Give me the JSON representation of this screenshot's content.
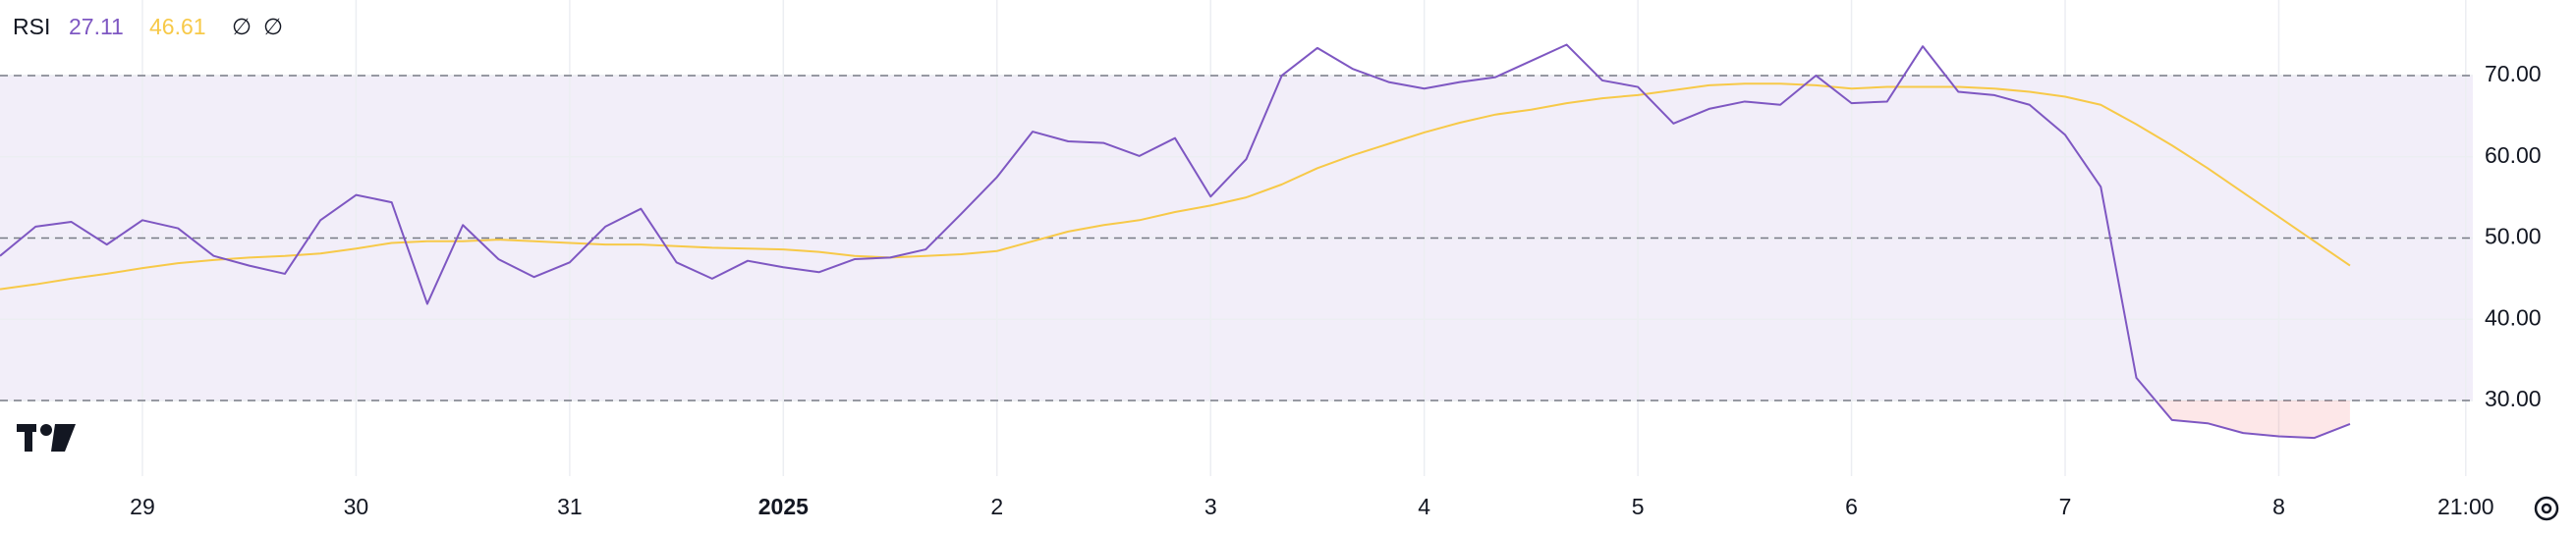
{
  "chart_data": {
    "type": "line",
    "title": "RSI",
    "legend_symbols": [
      "∅",
      "∅"
    ],
    "x": [
      0,
      1,
      2,
      3,
      4,
      5,
      6,
      7,
      8,
      9,
      10,
      11,
      12,
      13,
      14,
      15,
      16,
      17,
      18,
      19,
      20,
      21,
      22,
      23,
      24,
      25,
      26,
      27,
      28,
      29,
      30,
      31,
      32,
      33,
      34,
      35,
      36,
      37,
      38,
      39,
      40,
      41,
      42,
      43,
      44,
      45,
      46,
      47,
      48,
      49,
      50,
      51,
      52,
      53,
      54,
      55,
      56,
      57,
      58,
      59,
      60,
      61,
      62,
      63,
      64,
      65,
      66
    ],
    "series": [
      {
        "color": "#7e57c2",
        "values": [
          47.8,
          51.4,
          52.0,
          49.2,
          52.2,
          51.2,
          47.8,
          46.6,
          45.6,
          52.2,
          55.3,
          54.4,
          41.9,
          51.6,
          47.4,
          45.2,
          47.0,
          51.4,
          53.6,
          47.0,
          45.0,
          47.2,
          46.4,
          45.8,
          47.4,
          47.6,
          48.6,
          53.0,
          57.5,
          63.1,
          61.9,
          61.7,
          60.1,
          62.3,
          55.1,
          59.7,
          70.0,
          73.4,
          70.8,
          69.2,
          68.4,
          69.2,
          69.8,
          71.8,
          73.8,
          69.4,
          68.6,
          64.1,
          65.9,
          66.8,
          66.4,
          70.0,
          66.6,
          66.8,
          73.6,
          68.0,
          67.6,
          66.4,
          62.7,
          56.3,
          32.8,
          27.6,
          27.2,
          26.0,
          25.6,
          25.4,
          27.11
        ]
      },
      {
        "color": "#f7c948",
        "values": [
          43.7,
          44.3,
          45.0,
          45.6,
          46.3,
          46.9,
          47.3,
          47.6,
          47.8,
          48.1,
          48.7,
          49.4,
          49.6,
          49.6,
          49.8,
          49.6,
          49.4,
          49.2,
          49.2,
          49.0,
          48.8,
          48.7,
          48.6,
          48.3,
          47.8,
          47.6,
          47.8,
          48.0,
          48.4,
          49.6,
          50.8,
          51.6,
          52.2,
          53.2,
          54.0,
          55.0,
          56.6,
          58.6,
          60.2,
          61.6,
          63.0,
          64.2,
          65.2,
          65.8,
          66.6,
          67.2,
          67.6,
          68.2,
          68.8,
          69.0,
          69.0,
          68.8,
          68.4,
          68.6,
          68.6,
          68.6,
          68.4,
          68.0,
          67.4,
          66.4,
          64.0,
          61.4,
          58.6,
          55.6,
          52.6,
          49.6,
          46.61
        ]
      }
    ],
    "xlim": [
      0,
      69.45
    ],
    "xticks": [
      {
        "value": 4,
        "label": "29"
      },
      {
        "value": 10,
        "label": "30"
      },
      {
        "value": 16,
        "label": "31"
      },
      {
        "value": 22,
        "label": "2025"
      },
      {
        "value": 28,
        "label": "2"
      },
      {
        "value": 34,
        "label": "3"
      },
      {
        "value": 40,
        "label": "4"
      },
      {
        "value": 46,
        "label": "5"
      },
      {
        "value": 52,
        "label": "6"
      },
      {
        "value": 58,
        "label": "7"
      },
      {
        "value": 64,
        "label": "8"
      },
      {
        "value": 69.25,
        "label": "21:00"
      }
    ],
    "ylim": [
      20.7,
      79.3
    ],
    "yticks": [
      {
        "value": 30,
        "label": "30.00"
      },
      {
        "value": 40,
        "label": "40.00"
      },
      {
        "value": 50,
        "label": "50.00"
      },
      {
        "value": 60,
        "label": "60.00"
      },
      {
        "value": 70,
        "label": "70.00"
      }
    ],
    "levels": [
      30,
      50,
      70
    ],
    "band": [
      30,
      70
    ],
    "oversold_color": "#f23645",
    "grid": true
  }
}
